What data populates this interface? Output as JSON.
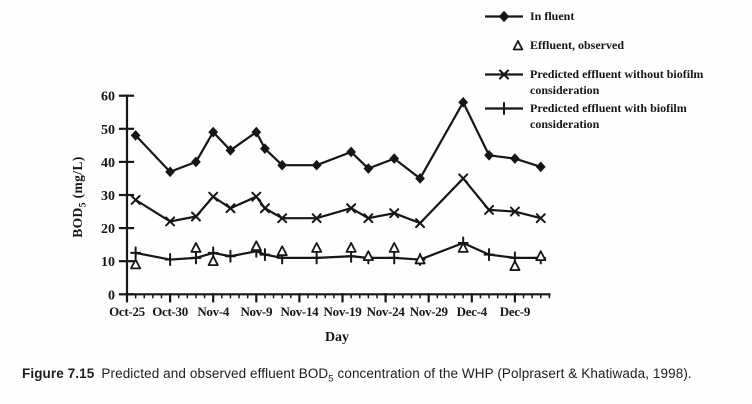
{
  "figure": {
    "caption": {
      "label": "Figure 7.15",
      "text_prefix": "Predicted and observed effluent BOD",
      "text_sub": "5",
      "text_suffix": " concentration of the WHP (Polprasert & Khatiwada, 1998)."
    }
  },
  "chart_data": {
    "type": "line",
    "title": "",
    "xlabel": "Day",
    "ylabel": "BOD₅ (mg/L)",
    "ylabel_parts": {
      "prefix": "BOD",
      "sub": "5",
      "suffix": " (mg/L)"
    },
    "ylim": [
      0,
      60
    ],
    "yticks": [
      0,
      10,
      20,
      30,
      40,
      50,
      60
    ],
    "x_unit": "days after Oct-25",
    "xlim_days": [
      0,
      49
    ],
    "minor_x_tick_every_days": 1,
    "grid": false,
    "legend_position": "top-right",
    "xticks": [
      {
        "day": 0,
        "label": "Oct-25"
      },
      {
        "day": 5,
        "label": "Oct-30"
      },
      {
        "day": 10,
        "label": "Nov-4"
      },
      {
        "day": 15,
        "label": "Nov-9"
      },
      {
        "day": 20,
        "label": "Nov-14"
      },
      {
        "day": 25,
        "label": "Nov-19"
      },
      {
        "day": 30,
        "label": "Nov-24"
      },
      {
        "day": 35,
        "label": "Nov-29"
      },
      {
        "day": 40,
        "label": "Dec-4"
      },
      {
        "day": 45,
        "label": "Dec-9"
      }
    ],
    "x_days": [
      1,
      5,
      8,
      10,
      12,
      15,
      16,
      18,
      22,
      26,
      28,
      31,
      34,
      39,
      42,
      45,
      48
    ],
    "series": [
      {
        "id": "influent",
        "name": "In fluent",
        "marker": "diamond-filled",
        "line": true,
        "y": [
          48,
          37,
          40,
          49,
          43.5,
          49,
          44,
          39,
          39,
          43,
          38,
          41,
          35,
          58,
          42,
          41,
          38.5
        ]
      },
      {
        "id": "effluent-observed",
        "name": "Effluent, observed",
        "marker": "triangle-open",
        "line": false,
        "x": [
          1,
          8,
          10,
          15,
          18,
          22,
          26,
          28,
          31,
          34,
          39,
          45,
          48
        ],
        "y": [
          9,
          14,
          10,
          14.5,
          13,
          14,
          14,
          11.5,
          14,
          10.5,
          14,
          8.5,
          11.5
        ]
      },
      {
        "id": "predicted-without-biofilm",
        "name": "Predicted effluent without biofilm consideration",
        "marker": "x",
        "line": true,
        "y": [
          28.5,
          22,
          23.5,
          29.5,
          26,
          29.5,
          26,
          23,
          23,
          26,
          23,
          24.5,
          21.5,
          35,
          25.5,
          25,
          23
        ]
      },
      {
        "id": "predicted-with-biofilm",
        "name": "Predicted effluent with biofilm consideration",
        "marker": "plus",
        "line": true,
        "y": [
          12.5,
          10.5,
          11,
          12.5,
          11.5,
          13,
          12,
          11,
          11,
          11.5,
          11,
          11,
          10.5,
          15.5,
          12,
          11,
          11
        ]
      }
    ]
  }
}
